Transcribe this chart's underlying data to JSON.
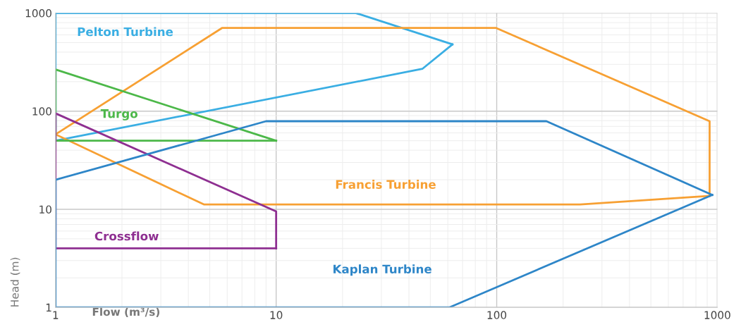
{
  "chart_data": {
    "type": "line",
    "xlabel": "Flow (m³/s)",
    "ylabel": "Head (m)",
    "log": "xy",
    "xlim": [
      1,
      1000
    ],
    "ylim": [
      1,
      1000
    ],
    "xticks": [
      1,
      10,
      100,
      1000
    ],
    "yticks": [
      1,
      10,
      100,
      1000
    ],
    "grid": true,
    "legend": false,
    "marker": "none",
    "line_style": "solid",
    "series": [
      {
        "name": "Pelton Turbine",
        "color": "#3aaee3",
        "x": [
          1,
          23,
          63
        ],
        "values": [
          1000,
          1000,
          480
        ]
      },
      {
        "color": "#3aaee3",
        "x": [
          1,
          1,
          46,
          63
        ],
        "values": [
          1000,
          50,
          270,
          480
        ]
      },
      {
        "name": "Francis Turbine",
        "color": "#f7a033",
        "x": [
          1,
          5.7,
          99,
          923,
          923
        ],
        "values": [
          58,
          707,
          707,
          79,
          13.7
        ]
      },
      {
        "color": "#f7a033",
        "x": [
          1,
          4.7,
          239,
          923
        ],
        "values": [
          58,
          11.2,
          11.2,
          13.7
        ]
      },
      {
        "name": "Turgo",
        "color": "#4cb849",
        "x": [
          1,
          1,
          10
        ],
        "values": [
          50,
          266,
          50
        ]
      },
      {
        "color": "#4cb849",
        "x": [
          1,
          10
        ],
        "values": [
          50,
          50
        ]
      },
      {
        "name": "Crossflow",
        "color": "#8e2f91",
        "x": [
          1,
          1,
          10,
          10
        ],
        "values": [
          4,
          95,
          9.5,
          4
        ]
      },
      {
        "color": "#8e2f91",
        "x": [
          1,
          10
        ],
        "values": [
          4,
          4
        ]
      },
      {
        "name": "Kaplan Turbine",
        "color": "#2e86c8",
        "x": [
          1,
          1,
          9,
          168,
          950
        ],
        "values": [
          1,
          20,
          79,
          79,
          14
        ]
      },
      {
        "color": "#2e86c8",
        "x": [
          1,
          61,
          950
        ],
        "values": [
          1,
          1,
          14
        ]
      }
    ]
  }
}
